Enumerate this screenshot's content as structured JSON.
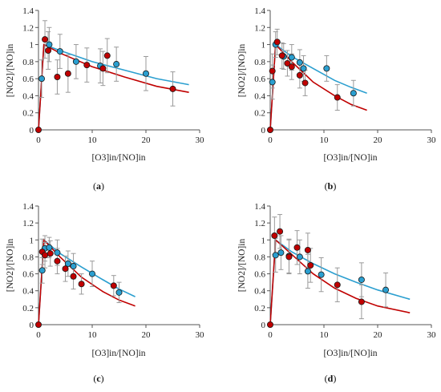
{
  "chart_data": [
    {
      "panel": "a",
      "type": "scatter",
      "xlabel": "[O3]in/[NO]in",
      "ylabel": "[NO2]/[NO]in",
      "xlim": [
        0,
        30
      ],
      "ylim": [
        0,
        1.4
      ],
      "xticks": [
        0,
        10,
        20,
        30
      ],
      "yticks": [
        0,
        0.2,
        0.4,
        0.6,
        0.8,
        1,
        1.2,
        1.4
      ],
      "xtick_labels": [
        "0",
        "10",
        "20",
        "30"
      ],
      "ytick_labels": [
        "0",
        "0.2",
        "0.4",
        "0.6",
        "0.8",
        "1",
        "1.2",
        "1.4"
      ],
      "grid": false,
      "series": [
        {
          "color": "#2b9fd0",
          "marker": "circle",
          "points": [
            {
              "x": 0.6,
              "y": 0.6,
              "err": 0.22
            },
            {
              "x": 2.0,
              "y": 1.0,
              "err": 0.2
            },
            {
              "x": 4.0,
              "y": 0.92,
              "err": 0.2
            },
            {
              "x": 7.0,
              "y": 0.8,
              "err": 0.2
            },
            {
              "x": 11.5,
              "y": 0.75,
              "err": 0.2
            },
            {
              "x": 14.5,
              "y": 0.77,
              "err": 0.2
            },
            {
              "x": 20.0,
              "y": 0.66,
              "err": 0.2
            }
          ],
          "fit": [
            [
              0,
              0
            ],
            [
              1,
              1
            ],
            [
              4,
              0.93
            ],
            [
              10,
              0.8
            ],
            [
              16,
              0.7
            ],
            [
              22,
              0.6
            ],
            [
              28,
              0.53
            ]
          ]
        },
        {
          "color": "#c00000",
          "marker": "circle",
          "points": [
            {
              "x": 0,
              "y": 0
            },
            {
              "x": 1.2,
              "y": 1.06,
              "err": 0.22
            },
            {
              "x": 1.8,
              "y": 0.93,
              "err": 0.22
            },
            {
              "x": 3.5,
              "y": 0.62,
              "err": 0.2
            },
            {
              "x": 5.5,
              "y": 0.66,
              "err": 0.22
            },
            {
              "x": 9.0,
              "y": 0.76,
              "err": 0.2
            },
            {
              "x": 12.0,
              "y": 0.72,
              "err": 0.2
            },
            {
              "x": 12.8,
              "y": 0.87,
              "err": 0.2
            },
            {
              "x": 25.0,
              "y": 0.48,
              "err": 0.2
            }
          ],
          "fit": [
            [
              0,
              0
            ],
            [
              1,
              1
            ],
            [
              4,
              0.9
            ],
            [
              10,
              0.74
            ],
            [
              16,
              0.62
            ],
            [
              22,
              0.51
            ],
            [
              28,
              0.44
            ]
          ]
        }
      ]
    },
    {
      "panel": "b",
      "type": "scatter",
      "xlabel": "[O3]in/[NO]in",
      "ylabel": "[NO2]/[NO]in",
      "xlim": [
        0,
        30
      ],
      "ylim": [
        0,
        1.4
      ],
      "xticks": [
        0,
        10,
        20,
        30
      ],
      "yticks": [
        0,
        0.2,
        0.4,
        0.6,
        0.8,
        1,
        1.2,
        1.4
      ],
      "xtick_labels": [
        "0",
        "10",
        "20",
        "30"
      ],
      "ytick_labels": [
        "0",
        "0.2",
        "0.4",
        "0.6",
        "0.8",
        "1",
        "1.2",
        "1.4"
      ],
      "grid": false,
      "series": [
        {
          "color": "#2b9fd0",
          "marker": "circle",
          "points": [
            {
              "x": 0.4,
              "y": 0.56,
              "err": 0.2
            },
            {
              "x": 1.0,
              "y": 1.0,
              "err": 0.15
            },
            {
              "x": 2.5,
              "y": 0.86,
              "err": 0.15
            },
            {
              "x": 4.0,
              "y": 0.85,
              "err": 0.15
            },
            {
              "x": 5.5,
              "y": 0.79,
              "err": 0.15
            },
            {
              "x": 6.2,
              "y": 0.72,
              "err": 0.15
            },
            {
              "x": 10.5,
              "y": 0.72,
              "err": 0.15
            },
            {
              "x": 15.5,
              "y": 0.43,
              "err": 0.15
            }
          ],
          "fit": [
            [
              0,
              0
            ],
            [
              1,
              1
            ],
            [
              4,
              0.86
            ],
            [
              8,
              0.72
            ],
            [
              12,
              0.58
            ],
            [
              15,
              0.5
            ],
            [
              18,
              0.43
            ]
          ]
        },
        {
          "color": "#c00000",
          "marker": "circle",
          "points": [
            {
              "x": 0,
              "y": 0
            },
            {
              "x": 0.4,
              "y": 0.69,
              "err": 0.2
            },
            {
              "x": 1.3,
              "y": 1.03,
              "err": 0.15
            },
            {
              "x": 2.2,
              "y": 0.87,
              "err": 0.15
            },
            {
              "x": 3.2,
              "y": 0.78,
              "err": 0.15
            },
            {
              "x": 4.0,
              "y": 0.74,
              "err": 0.15
            },
            {
              "x": 5.5,
              "y": 0.64,
              "err": 0.15
            },
            {
              "x": 6.5,
              "y": 0.55,
              "err": 0.15
            },
            {
              "x": 12.5,
              "y": 0.38,
              "err": 0.15
            }
          ],
          "fit": [
            [
              0,
              0
            ],
            [
              1,
              1
            ],
            [
              4,
              0.8
            ],
            [
              8,
              0.56
            ],
            [
              12,
              0.4
            ],
            [
              15,
              0.3
            ],
            [
              18,
              0.23
            ]
          ]
        }
      ]
    },
    {
      "panel": "c",
      "type": "scatter",
      "xlabel": "[O3]in/[NO]in",
      "ylabel": "[NO2]/[NO]in",
      "xlim": [
        0,
        30
      ],
      "ylim": [
        0,
        1.4
      ],
      "xticks": [
        0,
        10,
        20,
        30
      ],
      "yticks": [
        0,
        0.2,
        0.4,
        0.6,
        0.8,
        1,
        1.2,
        1.4
      ],
      "xtick_labels": [
        "0",
        "10",
        "20",
        "30"
      ],
      "ytick_labels": [
        "0",
        "0.2",
        "0.4",
        "0.6",
        "0.8",
        "1",
        "1.2",
        "1.4"
      ],
      "grid": false,
      "series": [
        {
          "color": "#2b9fd0",
          "marker": "circle",
          "points": [
            {
              "x": 0.7,
              "y": 0.64,
              "err": 0.15
            },
            {
              "x": 1.2,
              "y": 0.9,
              "err": 0.15
            },
            {
              "x": 2.0,
              "y": 0.91,
              "err": 0.12
            },
            {
              "x": 3.5,
              "y": 0.85,
              "err": 0.15
            },
            {
              "x": 5.5,
              "y": 0.72,
              "err": 0.15
            },
            {
              "x": 6.5,
              "y": 0.69,
              "err": 0.15
            },
            {
              "x": 10.0,
              "y": 0.6,
              "err": 0.15
            },
            {
              "x": 15.0,
              "y": 0.38,
              "err": 0.12
            }
          ],
          "fit": [
            [
              0,
              0
            ],
            [
              1,
              1
            ],
            [
              4,
              0.84
            ],
            [
              8,
              0.68
            ],
            [
              12,
              0.53
            ],
            [
              15,
              0.42
            ],
            [
              18,
              0.33
            ]
          ]
        },
        {
          "color": "#c00000",
          "marker": "circle",
          "points": [
            {
              "x": 0,
              "y": 0
            },
            {
              "x": 0.7,
              "y": 0.86,
              "err": 0.15
            },
            {
              "x": 1.2,
              "y": 0.82,
              "err": 0.15
            },
            {
              "x": 2.2,
              "y": 0.84,
              "err": 0.15
            },
            {
              "x": 3.5,
              "y": 0.75,
              "err": 0.15
            },
            {
              "x": 5.0,
              "y": 0.66,
              "err": 0.15
            },
            {
              "x": 6.5,
              "y": 0.57,
              "err": 0.15
            },
            {
              "x": 8.0,
              "y": 0.48,
              "err": 0.12
            },
            {
              "x": 14.0,
              "y": 0.46,
              "err": 0.12
            }
          ],
          "fit": [
            [
              0,
              0
            ],
            [
              1,
              1
            ],
            [
              4,
              0.8
            ],
            [
              8,
              0.56
            ],
            [
              12,
              0.39
            ],
            [
              15,
              0.29
            ],
            [
              18,
              0.22
            ]
          ]
        }
      ]
    },
    {
      "panel": "d",
      "type": "scatter",
      "xlabel": "[O3]in/[NO]in",
      "ylabel": "[NO2]/[NO]in",
      "xlim": [
        0,
        30
      ],
      "ylim": [
        0,
        1.4
      ],
      "xticks": [
        0,
        10,
        20,
        30
      ],
      "yticks": [
        0,
        0.2,
        0.4,
        0.6,
        0.8,
        1,
        1.2,
        1.4
      ],
      "xtick_labels": [
        "0",
        "10",
        "20",
        "30"
      ],
      "ytick_labels": [
        "0",
        "0.2",
        "0.4",
        "0.6",
        "0.8",
        "1",
        "1.2",
        "1.4"
      ],
      "grid": false,
      "series": [
        {
          "color": "#2b9fd0",
          "marker": "circle",
          "points": [
            {
              "x": 1.0,
              "y": 0.82,
              "err": 0.2
            },
            {
              "x": 2.0,
              "y": 0.85,
              "err": 0.2
            },
            {
              "x": 3.5,
              "y": 0.81,
              "err": 0.2
            },
            {
              "x": 5.5,
              "y": 0.8,
              "err": 0.2
            },
            {
              "x": 7.0,
              "y": 0.63,
              "err": 0.2
            },
            {
              "x": 9.5,
              "y": 0.59,
              "err": 0.2
            },
            {
              "x": 17.0,
              "y": 0.53,
              "err": 0.2
            },
            {
              "x": 21.5,
              "y": 0.41,
              "err": 0.2
            }
          ],
          "fit": [
            [
              0,
              0
            ],
            [
              1,
              1
            ],
            [
              4,
              0.86
            ],
            [
              8,
              0.72
            ],
            [
              12,
              0.6
            ],
            [
              16,
              0.5
            ],
            [
              20,
              0.41
            ],
            [
              26,
              0.3
            ]
          ]
        },
        {
          "color": "#c00000",
          "marker": "circle",
          "points": [
            {
              "x": 0,
              "y": 0
            },
            {
              "x": 0.8,
              "y": 1.05,
              "err": 0.22
            },
            {
              "x": 1.8,
              "y": 1.1,
              "err": 0.2
            },
            {
              "x": 3.5,
              "y": 0.8,
              "err": 0.2
            },
            {
              "x": 5.0,
              "y": 0.91,
              "err": 0.2
            },
            {
              "x": 7.0,
              "y": 0.88,
              "err": 0.2
            },
            {
              "x": 7.5,
              "y": 0.7,
              "err": 0.2
            },
            {
              "x": 12.5,
              "y": 0.47,
              "err": 0.2
            },
            {
              "x": 17.0,
              "y": 0.27,
              "err": 0.2
            }
          ],
          "fit": [
            [
              0,
              0
            ],
            [
              1,
              1
            ],
            [
              4,
              0.83
            ],
            [
              8,
              0.6
            ],
            [
              12,
              0.43
            ],
            [
              16,
              0.31
            ],
            [
              20,
              0.22
            ],
            [
              26,
              0.14
            ]
          ]
        }
      ]
    }
  ],
  "captions": [
    {
      "open": "(",
      "letter": "a",
      "close": ")"
    },
    {
      "open": "(",
      "letter": "b",
      "close": ")"
    },
    {
      "open": "(",
      "letter": "c",
      "close": ")"
    },
    {
      "open": "(",
      "letter": "d",
      "close": ")"
    }
  ],
  "colors": {
    "series_blue": "#2b9fd0",
    "series_red": "#c00000",
    "errorbar": "#9a9a9a"
  }
}
